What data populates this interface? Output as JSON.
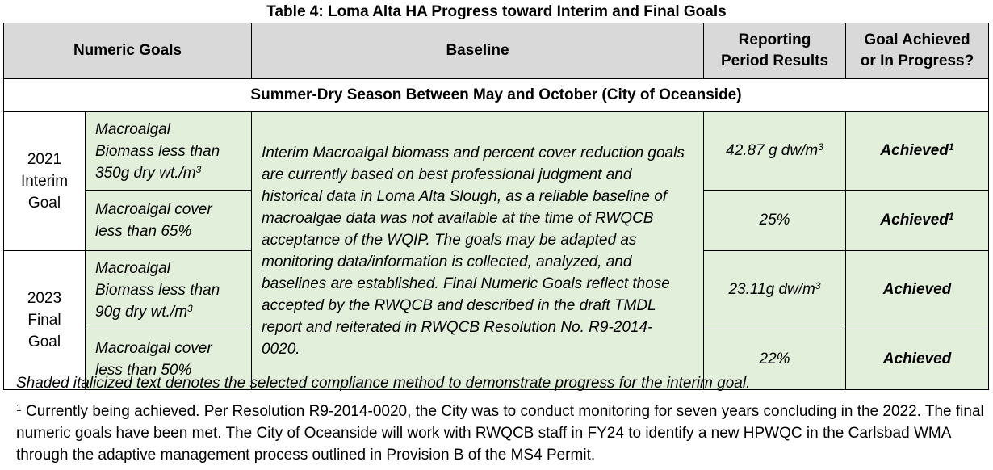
{
  "title": "Table 4: Loma Alta HA Progress toward Interim and Final Goals",
  "headers": {
    "numeric_goals": "Numeric Goals",
    "baseline": "Baseline",
    "results_line1": "Reporting",
    "results_line2": "Period Results",
    "status_line1": "Goal Achieved",
    "status_line2": "or In Progress?"
  },
  "season": "Summer-Dry Season Between May and October (City of Oceanside)",
  "interim": {
    "year": "2021",
    "label1": "Interim",
    "label2": "Goal"
  },
  "final": {
    "year": "2023",
    "label1": "Final",
    "label2": "Goal"
  },
  "rows": [
    {
      "goal_line1": "Macroalgal",
      "goal_line2": "Biomass less than",
      "goal_line3": "350g dry wt./m",
      "goal_sup": "3",
      "result": "42.87 g dw/m",
      "result_sup": "3",
      "status": "Achieved",
      "status_sup": "1"
    },
    {
      "goal_line1": "Macroalgal cover",
      "goal_line2": "less than 65%",
      "result": "25%",
      "status": "Achieved",
      "status_sup": "1"
    },
    {
      "goal_line1": "Macroalgal",
      "goal_line2": "Biomass less than",
      "goal_line3": "90g dry wt./m",
      "goal_sup": "3",
      "result": "23.11g dw/m",
      "result_sup": "3",
      "status": "Achieved"
    },
    {
      "goal_line1": "Macroalgal cover",
      "goal_line2": "less than 50%",
      "result": "22%",
      "status": "Achieved"
    }
  ],
  "baseline_text": "Interim Macroalgal biomass and percent cover reduction goals are currently based on best professional judgment and historical data in Loma Alta Slough, as a reliable baseline of macroalgae data was not available at the time of RWQCB acceptance of the WQIP. The goals may be adapted as monitoring data/information is collected, analyzed, and baselines are established. Final Numeric Goals reflect those accepted by the RWQCB and described in the draft TMDL report and reiterated in RWQCB Resolution No. R9-2014-0020.",
  "note": "Shaded italicized text denotes the selected compliance method to demonstrate progress for the interim goal.",
  "footnote": {
    "marker": "1",
    "text": " Currently being achieved. Per Resolution R9-2014-0020, the City was to conduct monitoring for seven years concluding in the 2022. The final numeric goals have been met. The City of Oceanside will work with RWQCB staff in FY24 to identify a new HPWQC in the Carlsbad WMA through the adaptive management process outlined in Provision B of the MS4 Permit."
  }
}
